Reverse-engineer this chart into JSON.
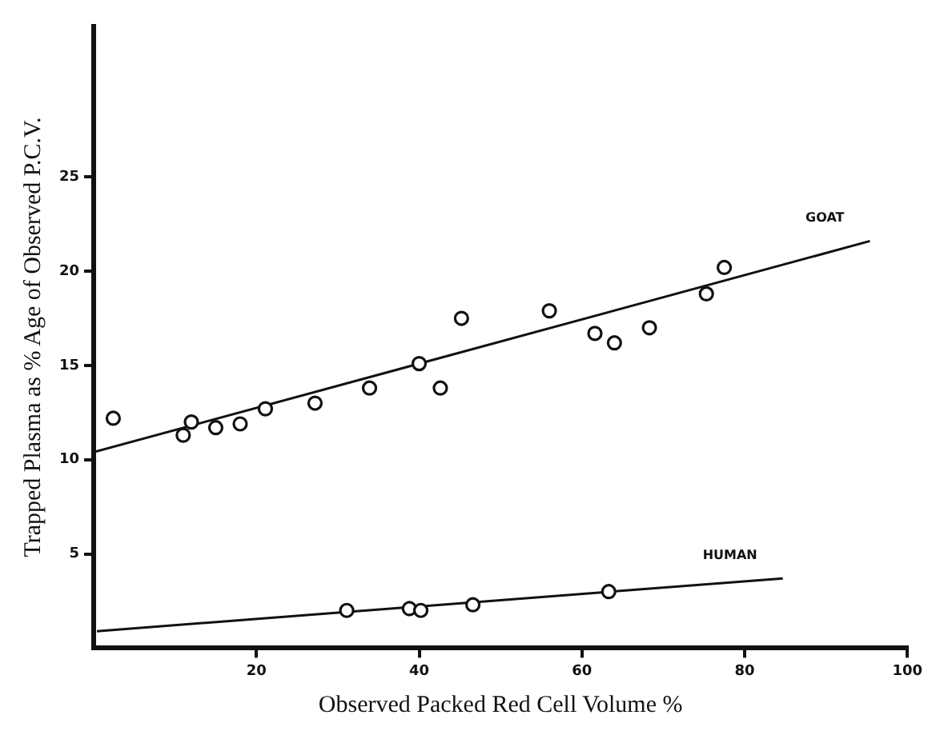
{
  "chart_data": {
    "type": "scatter",
    "xlabel": "Observed Packed Red Cell Volume %",
    "ylabel": "Trapped Plasma as % Age of Observed P.C.V.",
    "xlim": [
      0,
      100
    ],
    "ylim": [
      0,
      33
    ],
    "xticks": [
      20,
      40,
      60,
      80,
      100
    ],
    "yticks": [
      5,
      10,
      15,
      20,
      25
    ],
    "grid": false,
    "legend": false,
    "series": [
      {
        "type": "scatter",
        "marker": "circle",
        "color": "#111111",
        "x": [
          2.4,
          11,
          12,
          15,
          18,
          21.1,
          27.2,
          33.9,
          40.0,
          42.6,
          45.2,
          56.0,
          61.6,
          64.0,
          68.3,
          75.3,
          77.5
        ],
        "values": [
          12.2,
          11.3,
          12.0,
          11.7,
          11.9,
          12.7,
          13.0,
          13.8,
          15.1,
          13.8,
          17.5,
          17.9,
          16.7,
          16.2,
          17.0,
          18.8,
          20.2
        ]
      },
      {
        "type": "line",
        "name": "GOAT",
        "marker": "none",
        "color": "#111111",
        "x": [
          0,
          95.4
        ],
        "values": [
          10.4,
          21.6
        ]
      },
      {
        "type": "scatter",
        "marker": "circle",
        "color": "#111111",
        "x": [
          31.1,
          38.8,
          40.2,
          46.6,
          63.3
        ],
        "values": [
          2.0,
          2.1,
          2.0,
          2.3,
          3.0
        ]
      },
      {
        "type": "line",
        "name": "HUMAN",
        "marker": "none",
        "color": "#111111",
        "x": [
          0.4,
          84.7
        ],
        "values": [
          0.9,
          3.7
        ]
      }
    ]
  }
}
